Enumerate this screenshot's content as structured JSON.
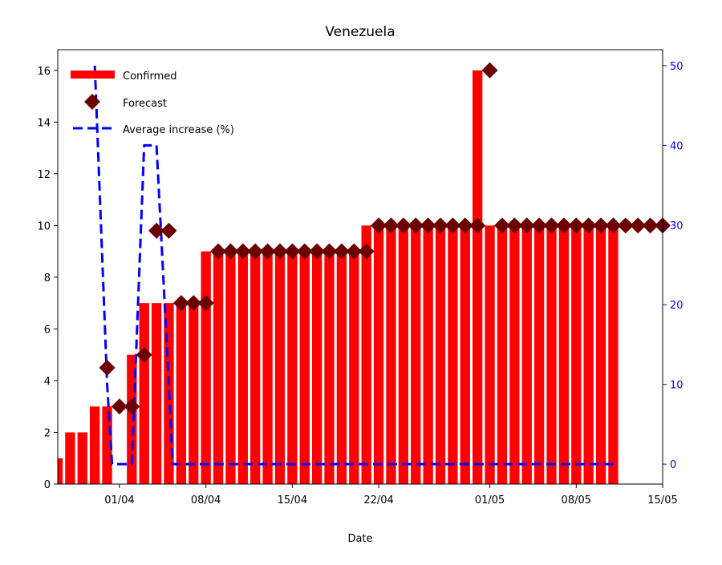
{
  "chart_data": {
    "type": "bar",
    "title": "Venezuela",
    "xlabel": "Date",
    "ylabel": "",
    "y2label": "",
    "x_tick_labels": [
      "01/04",
      "08/04",
      "15/04",
      "22/04",
      "01/05",
      "08/05",
      "15/05"
    ],
    "x_tick_days": [
      7,
      14,
      21,
      28,
      37,
      44,
      51
    ],
    "xlim_days": [
      2,
      51
    ],
    "ylim": [
      0,
      16.8
    ],
    "y_ticks": [
      0,
      2,
      4,
      6,
      8,
      10,
      12,
      14,
      16
    ],
    "y2lim": [
      -2.5,
      52
    ],
    "y2_ticks": [
      0,
      10,
      20,
      30,
      40,
      50
    ],
    "legend": {
      "position": "top-left",
      "entries": [
        "Confirmed",
        "Forecast",
        "Average increase (%)"
      ]
    },
    "colors": {
      "confirmed": "#ff0000",
      "forecast": "#6b0000",
      "average": "#0000ff",
      "right_axis": "#0000ff"
    },
    "series": [
      {
        "name": "Confirmed",
        "kind": "bar",
        "axis": "left",
        "points": [
          [
            2,
            1
          ],
          [
            3,
            2
          ],
          [
            4,
            2
          ],
          [
            5,
            3
          ],
          [
            6,
            3
          ],
          [
            8,
            5
          ],
          [
            9,
            7
          ],
          [
            10,
            7
          ],
          [
            11,
            7
          ],
          [
            12,
            7
          ],
          [
            13,
            7
          ],
          [
            14,
            9
          ],
          [
            15,
            9
          ],
          [
            16,
            9
          ],
          [
            17,
            9
          ],
          [
            18,
            9
          ],
          [
            19,
            9
          ],
          [
            20,
            9
          ],
          [
            21,
            9
          ],
          [
            22,
            9
          ],
          [
            23,
            9
          ],
          [
            24,
            9
          ],
          [
            25,
            9
          ],
          [
            26,
            9
          ],
          [
            27,
            10
          ],
          [
            28,
            10
          ],
          [
            29,
            10
          ],
          [
            30,
            10
          ],
          [
            31,
            10
          ],
          [
            32,
            10
          ],
          [
            33,
            10
          ],
          [
            34,
            10
          ],
          [
            35,
            10
          ],
          [
            36,
            16
          ],
          [
            37,
            10
          ],
          [
            38,
            10
          ],
          [
            39,
            10
          ],
          [
            40,
            10
          ],
          [
            41,
            10
          ],
          [
            42,
            10
          ],
          [
            43,
            10
          ],
          [
            44,
            10
          ],
          [
            45,
            10
          ],
          [
            46,
            10
          ],
          [
            47,
            10
          ]
        ]
      },
      {
        "name": "Forecast",
        "kind": "scatter",
        "axis": "left",
        "points": [
          [
            6,
            4.5
          ],
          [
            7,
            3
          ],
          [
            8,
            3
          ],
          [
            9,
            5
          ],
          [
            10,
            9.8
          ],
          [
            11,
            9.8
          ],
          [
            12,
            7
          ],
          [
            13,
            7
          ],
          [
            14,
            7
          ],
          [
            15,
            9
          ],
          [
            16,
            9
          ],
          [
            17,
            9
          ],
          [
            18,
            9
          ],
          [
            19,
            9
          ],
          [
            20,
            9
          ],
          [
            21,
            9
          ],
          [
            22,
            9
          ],
          [
            23,
            9
          ],
          [
            24,
            9
          ],
          [
            25,
            9
          ],
          [
            26,
            9
          ],
          [
            27,
            9
          ],
          [
            28,
            10
          ],
          [
            29,
            10
          ],
          [
            30,
            10
          ],
          [
            31,
            10
          ],
          [
            32,
            10
          ],
          [
            33,
            10
          ],
          [
            34,
            10
          ],
          [
            35,
            10
          ],
          [
            36,
            10
          ],
          [
            37,
            16
          ],
          [
            38,
            10
          ],
          [
            39,
            10
          ],
          [
            40,
            10
          ],
          [
            41,
            10
          ],
          [
            42,
            10
          ],
          [
            43,
            10
          ],
          [
            44,
            10
          ],
          [
            45,
            10
          ],
          [
            46,
            10
          ],
          [
            47,
            10
          ],
          [
            48,
            10
          ],
          [
            49,
            10
          ],
          [
            50,
            10
          ],
          [
            51,
            10
          ]
        ]
      },
      {
        "name": "Average increase (%)",
        "kind": "line",
        "axis": "right",
        "points": [
          [
            5,
            50
          ],
          [
            6,
            10
          ],
          [
            6.4,
            0
          ],
          [
            7,
            0
          ],
          [
            8,
            0
          ],
          [
            9,
            40
          ],
          [
            10,
            40
          ],
          [
            11,
            10
          ],
          [
            11.3,
            0
          ],
          [
            47,
            0
          ]
        ]
      }
    ]
  }
}
